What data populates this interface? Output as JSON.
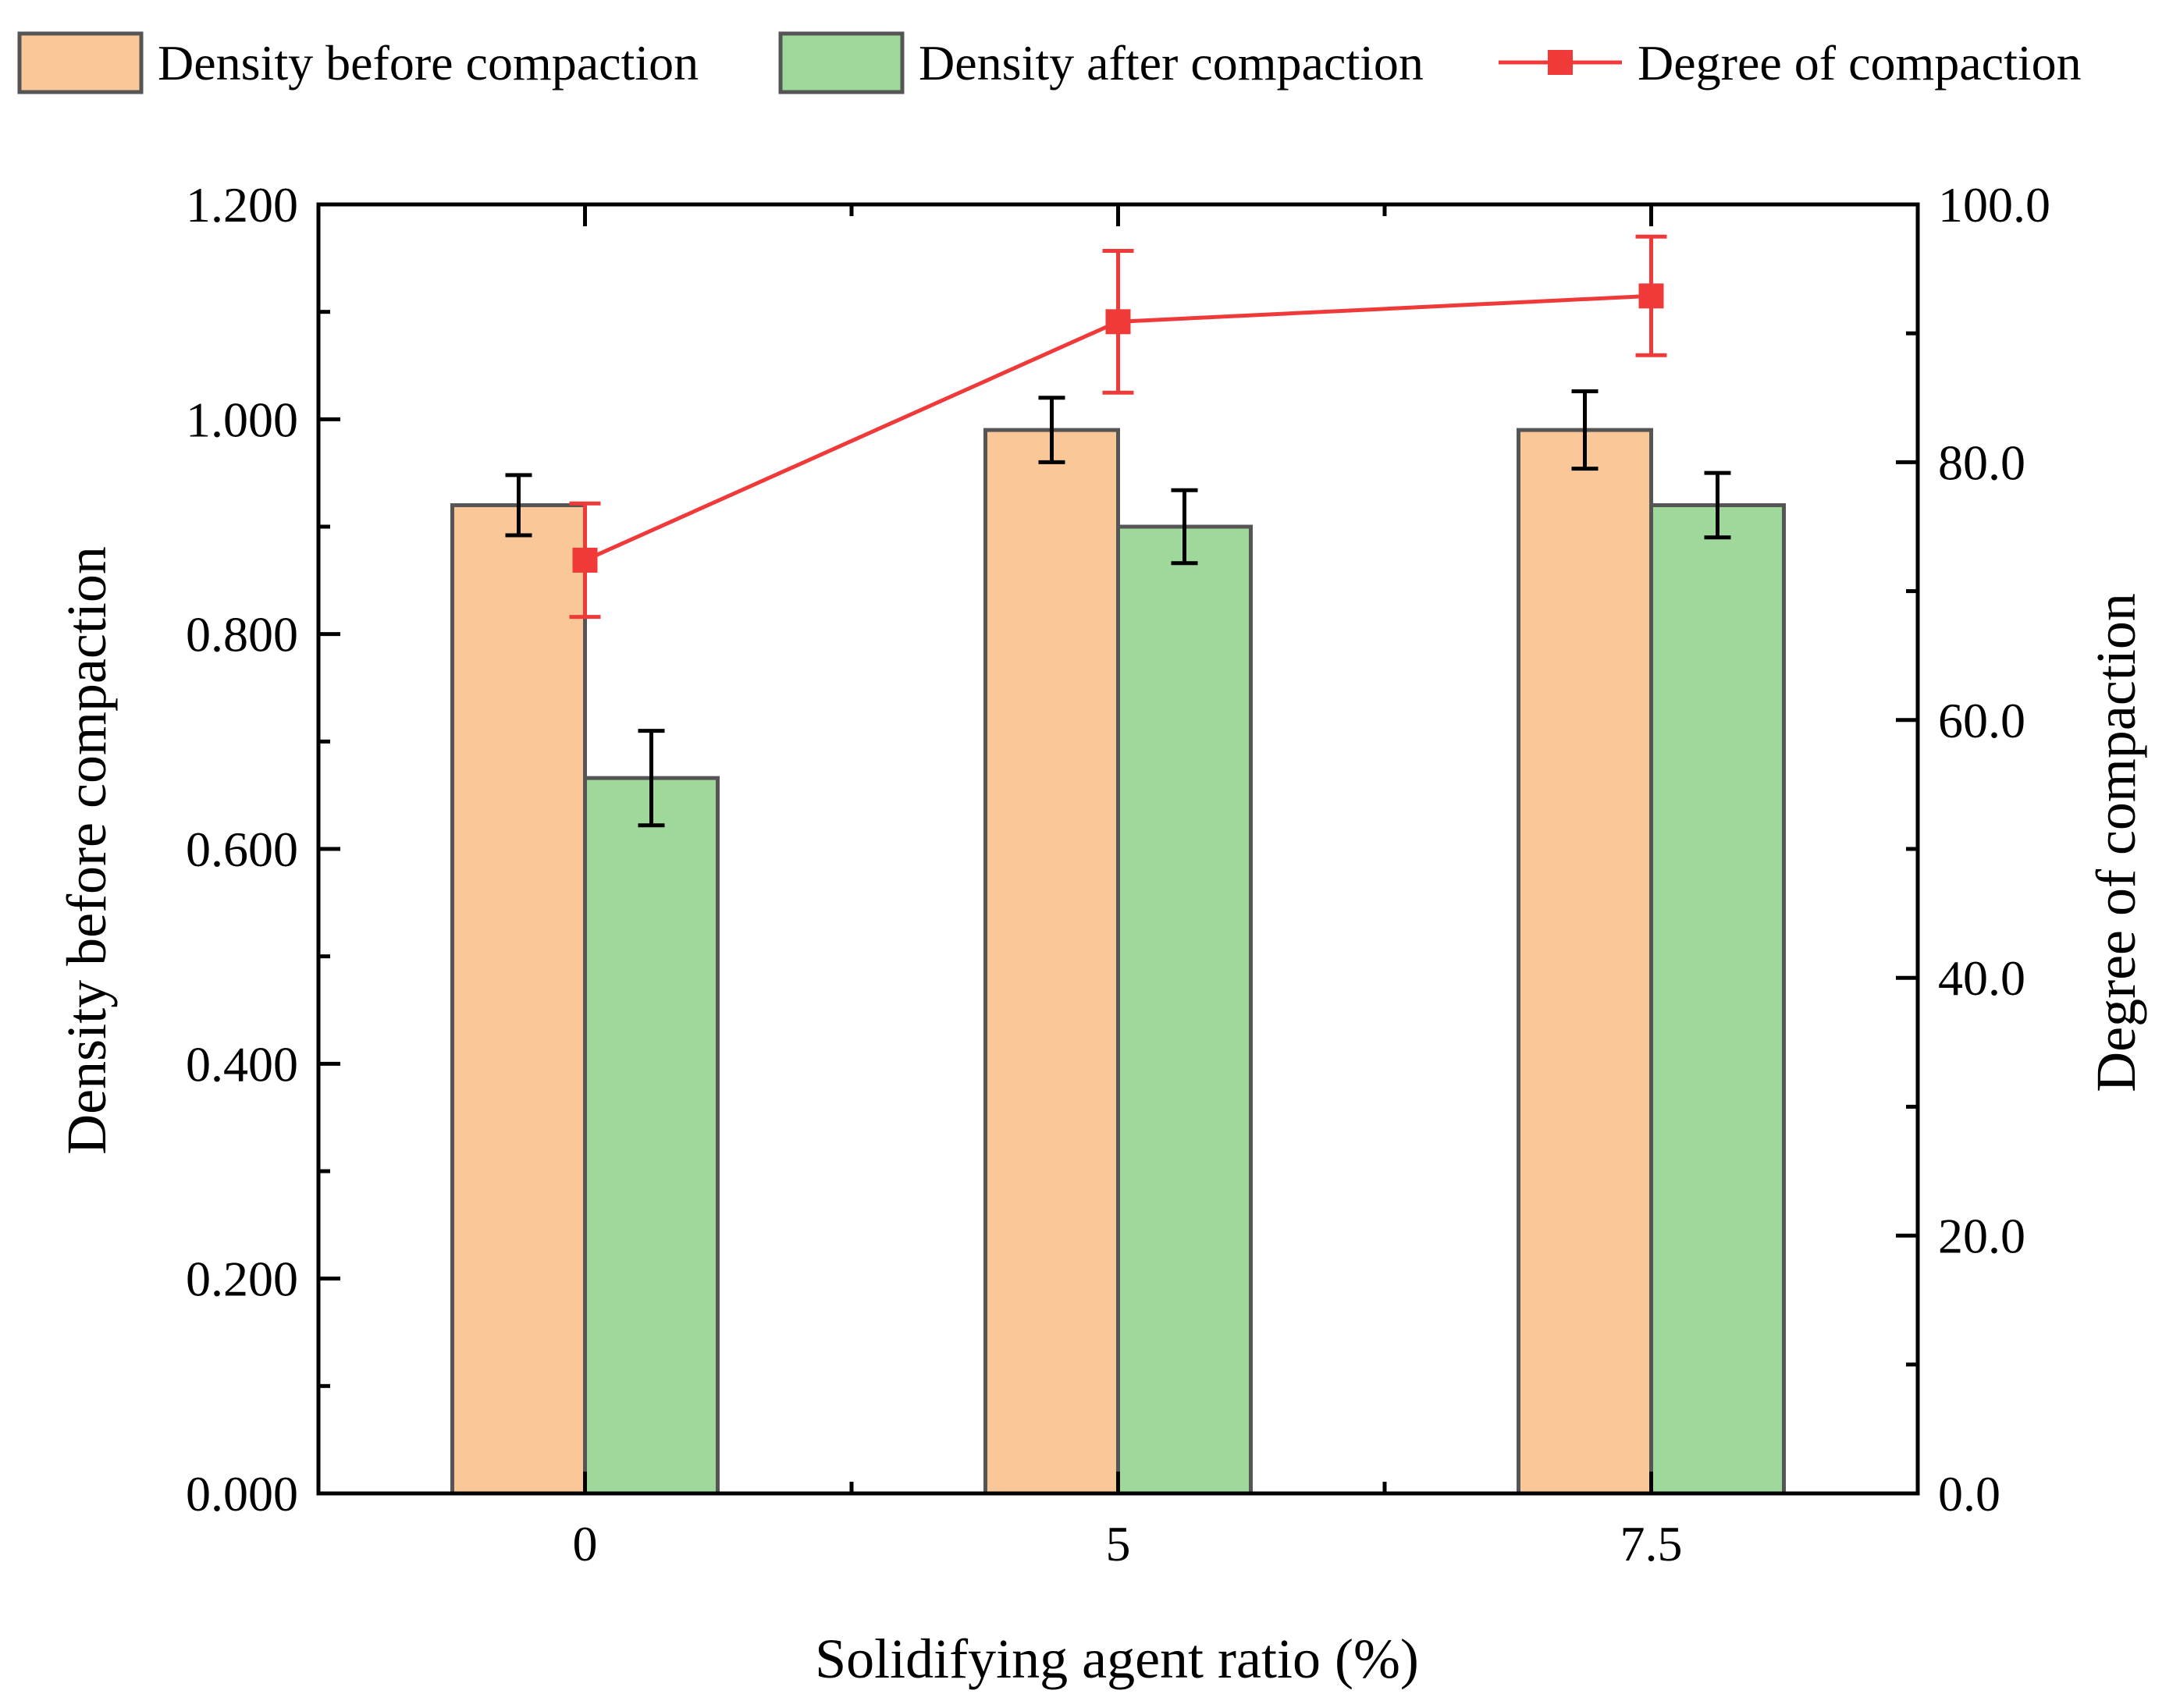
{
  "chart_data": {
    "type": "bar",
    "categories": [
      "0",
      "5",
      "7.5"
    ],
    "xlabel": "Solidifying agent ratio (%)",
    "ylabel": "Density before compaction",
    "y2label": "Degree of compaction",
    "ylim": [
      0,
      1.2
    ],
    "y2lim": [
      0,
      100
    ],
    "y_ticks": [
      "0.000",
      "0.200",
      "0.400",
      "0.600",
      "0.800",
      "1.000",
      "1.200"
    ],
    "y2_ticks": [
      "0.0",
      "20.0",
      "40.0",
      "60.0",
      "80.0",
      "100.0"
    ],
    "series": [
      {
        "name": "Density before compaction",
        "kind": "bar",
        "axis": "left",
        "color": "#FAC898",
        "values": [
          0.92,
          0.99,
          0.99
        ],
        "errors": [
          0.028,
          0.03,
          0.036
        ]
      },
      {
        "name": "Density after compaction",
        "kind": "bar",
        "axis": "left",
        "color": "#9ED89A",
        "values": [
          0.666,
          0.9,
          0.92
        ],
        "errors": [
          0.044,
          0.034,
          0.03
        ]
      },
      {
        "name": "Degree of compaction",
        "kind": "line",
        "axis": "right",
        "color": "#F03A3A",
        "values": [
          72.4,
          90.9,
          92.9
        ],
        "errors": [
          4.4,
          5.5,
          4.6
        ]
      }
    ],
    "legend": "top"
  }
}
